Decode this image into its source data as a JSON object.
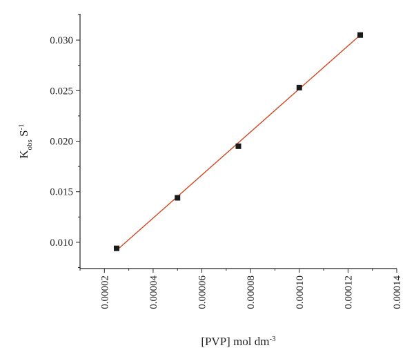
{
  "chart_data": {
    "type": "scatter",
    "x": [
      2.5e-05,
      5e-05,
      7.5e-05,
      0.0001,
      0.000125
    ],
    "y": [
      0.0094,
      0.0144,
      0.0195,
      0.0253,
      0.0305
    ],
    "fit_line": {
      "x": [
        2.5e-05,
        0.000125
      ],
      "y": [
        0.0092,
        0.0305
      ]
    },
    "xlim": [
      1e-05,
      0.00014
    ],
    "ylim": [
      0.0074,
      0.0326
    ],
    "x_ticks": [
      "0.00002",
      "0.00004",
      "0.00006",
      "0.00008",
      "0.00010",
      "0.00012",
      "0.00014"
    ],
    "x_tick_values": [
      2e-05,
      4e-05,
      6e-05,
      8e-05,
      0.0001,
      0.00012,
      0.00014
    ],
    "y_ticks": [
      "0.010",
      "0.015",
      "0.020",
      "0.025",
      "0.030"
    ],
    "y_tick_values": [
      0.01,
      0.015,
      0.02,
      0.025,
      0.03
    ],
    "xlabel": {
      "main": "[PVP] mol dm",
      "sup": "-3"
    },
    "ylabel": {
      "main": "K",
      "sub": "obs",
      "mid": " S",
      "sup": "-1"
    },
    "grid": false,
    "colors": {
      "marker": "#1a1a1a",
      "fit_line": "#d2461e",
      "axis": "#222222"
    }
  }
}
